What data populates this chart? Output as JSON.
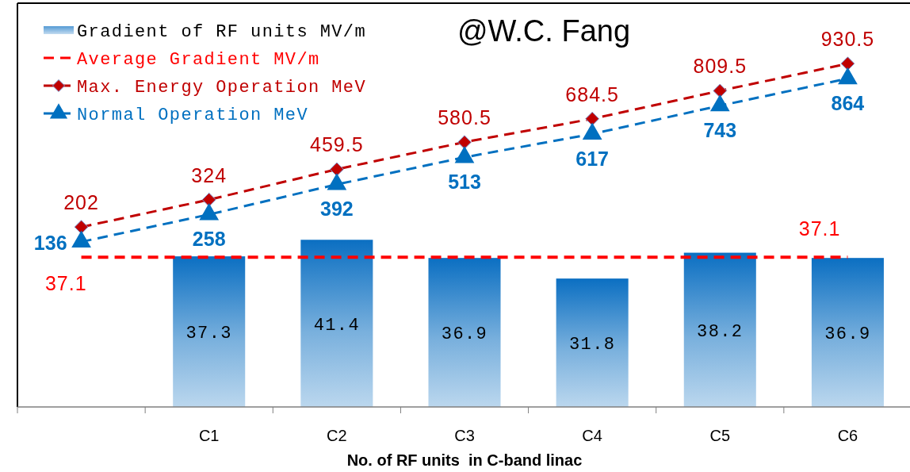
{
  "chart_data": {
    "type": "bar",
    "title": "@W.C. Fang",
    "xlabel": "No. of RF units  in C-band linac",
    "categories": [
      null,
      "C1",
      "C2",
      "C3",
      "C4",
      "C5",
      "C6"
    ],
    "series": [
      {
        "name": "Gradient of RF units MV/m",
        "color": "#0b6fc2",
        "values": [
          null,
          37.3,
          41.4,
          36.9,
          31.8,
          38.2,
          36.9
        ]
      },
      {
        "name": "Average Gradient MV/m",
        "type": "line",
        "color": "#ff0000",
        "marker": "none",
        "values": [
          37.1,
          37.1,
          37.1,
          37.1,
          37.1,
          37.1,
          37.1
        ],
        "value_labels": [
          "37.1",
          null,
          null,
          null,
          null,
          null,
          "37.1"
        ]
      },
      {
        "name": "Max. Energy Operation MeV",
        "type": "line",
        "axis": "y2",
        "color": "#c00000",
        "marker": "diamond",
        "values": [
          202,
          324,
          459.5,
          580.5,
          684.5,
          809.5,
          930.5
        ]
      },
      {
        "name": "Normal Operation MeV",
        "type": "line",
        "axis": "y2",
        "color": "#0070c0",
        "marker": "triangle",
        "values": [
          136,
          258,
          392,
          513,
          617,
          743,
          864
        ]
      }
    ],
    "ylim": [
      0,
      100
    ],
    "y2lim": [
      -600,
      1200
    ],
    "tick_labels": "x",
    "line_style": "dashed",
    "data_labels": true,
    "legend": "top left"
  }
}
